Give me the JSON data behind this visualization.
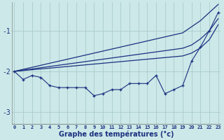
{
  "xlabel": "Graphe des températures (°c)",
  "background_color": "#cce8e8",
  "grid_color": "#aacccc",
  "line_color": "#1a3080",
  "x": [
    0,
    1,
    2,
    3,
    4,
    5,
    6,
    7,
    8,
    9,
    10,
    11,
    12,
    13,
    14,
    15,
    16,
    17,
    18,
    19,
    20,
    21,
    22,
    23
  ],
  "line_top": [
    -2.0,
    -1.95,
    -1.9,
    -1.85,
    -1.8,
    -1.75,
    -1.7,
    -1.65,
    -1.6,
    -1.55,
    -1.5,
    -1.45,
    -1.4,
    -1.35,
    -1.3,
    -1.25,
    -1.2,
    -1.15,
    -1.1,
    -1.05,
    -0.9,
    -0.75,
    -0.55,
    -0.35
  ],
  "line_mid1": [
    -2.0,
    -1.97,
    -1.94,
    -1.91,
    -1.88,
    -1.85,
    -1.82,
    -1.79,
    -1.76,
    -1.73,
    -1.7,
    -1.67,
    -1.64,
    -1.61,
    -1.58,
    -1.55,
    -1.52,
    -1.49,
    -1.46,
    -1.43,
    -1.35,
    -1.2,
    -1.0,
    -0.7
  ],
  "line_mid2": [
    -2.0,
    -1.98,
    -1.96,
    -1.94,
    -1.92,
    -1.9,
    -1.88,
    -1.86,
    -1.84,
    -1.82,
    -1.8,
    -1.78,
    -1.76,
    -1.74,
    -1.72,
    -1.7,
    -1.68,
    -1.66,
    -1.64,
    -1.62,
    -1.55,
    -1.42,
    -1.22,
    -0.85
  ],
  "line_dot": [
    -2.0,
    -2.2,
    -2.1,
    -2.15,
    -2.35,
    -2.4,
    -2.4,
    -2.4,
    -2.4,
    -2.6,
    -2.55,
    -2.45,
    -2.45,
    -2.3,
    -2.3,
    -2.3,
    -2.1,
    -2.55,
    -2.45,
    -2.35,
    -1.75,
    -1.4,
    -1.0,
    -0.55
  ],
  "ylim": [
    -3.3,
    -0.3
  ],
  "yticks": [
    -3,
    -2,
    -1
  ],
  "xlim": [
    -0.3,
    23.3
  ]
}
